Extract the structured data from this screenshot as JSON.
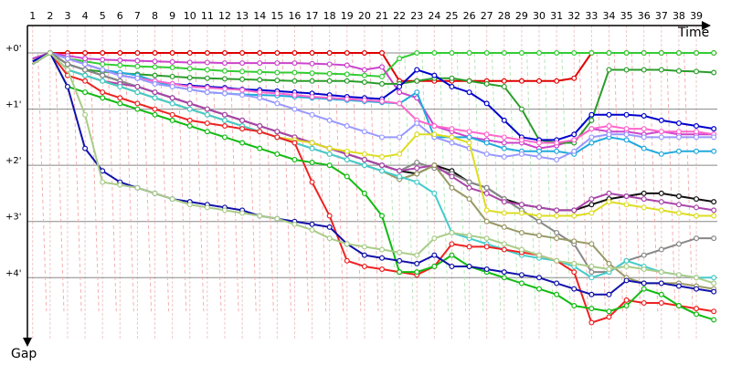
{
  "chart_data": {
    "type": "line",
    "xlabel": "Time",
    "ylabel": "Gap",
    "x_ticks": [
      "1",
      "2",
      "3",
      "4",
      "5",
      "6",
      "7",
      "8",
      "9",
      "10",
      "11",
      "12",
      "13",
      "14",
      "15",
      "16",
      "17",
      "18",
      "19",
      "20",
      "21",
      "22",
      "23",
      "24",
      "25",
      "26",
      "27",
      "28",
      "29",
      "30",
      "31",
      "32",
      "33",
      "34",
      "35",
      "36",
      "37",
      "38",
      "39"
    ],
    "y_ticks": [
      "+0'",
      "+1'",
      "+2'",
      "+3'",
      "+4'"
    ],
    "ylim": [
      0,
      5.1
    ],
    "xlim": [
      0.7,
      40.2
    ],
    "series": [
      {
        "color": "#e00000",
        "values": [
          0.1,
          0,
          0,
          0,
          0,
          0,
          0,
          0,
          0,
          0,
          0,
          0,
          0,
          0,
          0,
          0,
          0,
          0,
          0,
          0,
          0,
          0.5,
          0.5,
          0.5,
          0.5,
          0.5,
          0.5,
          0.5,
          0.5,
          0.5,
          0.5,
          0.45,
          0,
          0,
          0,
          0,
          0,
          0,
          0,
          0
        ]
      },
      {
        "color": "#33cc33",
        "values": [
          0.1,
          0,
          0.1,
          0.15,
          0.2,
          0.22,
          0.24,
          0.25,
          0.26,
          0.28,
          0.3,
          0.32,
          0.33,
          0.34,
          0.35,
          0.35,
          0.36,
          0.37,
          0.38,
          0.4,
          0.42,
          0.1,
          0,
          0,
          0,
          0,
          0,
          0,
          0,
          0,
          0,
          0,
          0,
          0,
          0,
          0,
          0,
          0,
          0,
          0
        ]
      },
      {
        "color": "#cc44cc",
        "values": [
          0.1,
          0,
          0.05,
          0.1,
          0.12,
          0.13,
          0.14,
          0.15,
          0.16,
          0.17,
          0.17,
          0.18,
          0.18,
          0.18,
          0.18,
          0.18,
          0.19,
          0.2,
          0.22,
          0.3,
          0.25,
          0.7,
          0.8,
          1.3,
          1.4,
          1.5,
          1.55,
          1.6,
          1.6,
          1.7,
          1.65,
          1.55,
          1.35,
          1.4,
          1.4,
          1.45,
          1.4,
          1.45,
          1.45,
          1.45
        ]
      },
      {
        "color": "#2a9d2a",
        "values": [
          0.15,
          0,
          0.2,
          0.3,
          0.33,
          0.36,
          0.38,
          0.4,
          0.42,
          0.44,
          0.45,
          0.46,
          0.47,
          0.48,
          0.49,
          0.5,
          0.5,
          0.5,
          0.5,
          0.52,
          0.55,
          0.55,
          0.5,
          0.45,
          0.45,
          0.5,
          0.55,
          0.6,
          1.0,
          1.55,
          1.6,
          1.6,
          1.2,
          0.3,
          0.3,
          0.3,
          0.3,
          0.32,
          0.33,
          0.35
        ]
      },
      {
        "color": "#0000cc",
        "values": [
          0.15,
          0,
          0.1,
          0.2,
          0.3,
          0.4,
          0.45,
          0.5,
          0.55,
          0.58,
          0.6,
          0.62,
          0.65,
          0.66,
          0.68,
          0.7,
          0.72,
          0.75,
          0.78,
          0.8,
          0.82,
          0.6,
          0.3,
          0.4,
          0.6,
          0.7,
          0.9,
          1.2,
          1.5,
          1.55,
          1.55,
          1.45,
          1.1,
          1.1,
          1.1,
          1.12,
          1.2,
          1.25,
          1.3,
          1.35
        ]
      },
      {
        "color": "#22aadd",
        "values": [
          0.2,
          0,
          0.1,
          0.2,
          0.3,
          0.35,
          0.4,
          0.5,
          0.6,
          0.65,
          0.7,
          0.72,
          0.74,
          0.75,
          0.76,
          0.78,
          0.8,
          0.82,
          0.84,
          0.86,
          0.88,
          0.9,
          0.7,
          1.5,
          1.5,
          1.5,
          1.6,
          1.7,
          1.75,
          1.75,
          1.75,
          1.8,
          1.6,
          1.5,
          1.55,
          1.7,
          1.8,
          1.75,
          1.75,
          1.75
        ]
      },
      {
        "color": "#ff66cc",
        "values": [
          0.2,
          0,
          0.1,
          0.2,
          0.3,
          0.4,
          0.45,
          0.5,
          0.55,
          0.6,
          0.62,
          0.64,
          0.66,
          0.7,
          0.72,
          0.75,
          0.78,
          0.8,
          0.82,
          0.84,
          0.86,
          0.9,
          1.2,
          1.3,
          1.35,
          1.4,
          1.45,
          1.5,
          1.55,
          1.6,
          1.6,
          1.55,
          1.35,
          1.3,
          1.35,
          1.35,
          1.4,
          1.4,
          1.4,
          1.45
        ]
      },
      {
        "color": "#9999ff",
        "values": [
          0.2,
          0,
          0.1,
          0.2,
          0.3,
          0.4,
          0.45,
          0.55,
          0.6,
          0.65,
          0.7,
          0.72,
          0.75,
          0.8,
          0.9,
          1.0,
          1.1,
          1.2,
          1.3,
          1.4,
          1.5,
          1.5,
          1.25,
          1.5,
          1.6,
          1.7,
          1.8,
          1.85,
          1.8,
          1.85,
          1.9,
          1.75,
          1.5,
          1.45,
          1.45,
          1.5,
          1.5,
          1.5,
          1.5,
          1.5
        ]
      },
      {
        "color": "#111111",
        "values": [
          0.2,
          0,
          0.2,
          0.3,
          0.4,
          0.5,
          0.6,
          0.7,
          0.8,
          0.9,
          1.0,
          1.1,
          1.2,
          1.3,
          1.4,
          1.5,
          1.6,
          1.7,
          1.8,
          1.9,
          2.0,
          2.1,
          2.15,
          2.0,
          2.1,
          2.3,
          2.4,
          2.6,
          2.7,
          2.75,
          2.8,
          2.8,
          2.7,
          2.6,
          2.55,
          2.5,
          2.5,
          2.55,
          2.6,
          2.65
        ]
      },
      {
        "color": "#888888",
        "values": [
          0.2,
          0,
          0.2,
          0.3,
          0.4,
          0.5,
          0.6,
          0.7,
          0.8,
          0.9,
          1.0,
          1.1,
          1.2,
          1.3,
          1.4,
          1.5,
          1.6,
          1.7,
          1.8,
          1.9,
          2.0,
          2.1,
          1.95,
          2.05,
          2.15,
          2.3,
          2.4,
          2.6,
          2.8,
          3.0,
          3.2,
          3.4,
          3.9,
          3.9,
          3.7,
          3.6,
          3.5,
          3.4,
          3.3,
          3.3
        ]
      },
      {
        "color": "#aa44aa",
        "values": [
          0.2,
          0,
          0.3,
          0.4,
          0.5,
          0.55,
          0.6,
          0.7,
          0.8,
          0.9,
          1.0,
          1.1,
          1.2,
          1.3,
          1.4,
          1.5,
          1.6,
          1.7,
          1.8,
          1.9,
          2.0,
          2.1,
          2.05,
          2.0,
          2.2,
          2.4,
          2.5,
          2.65,
          2.7,
          2.75,
          2.8,
          2.8,
          2.6,
          2.5,
          2.55,
          2.6,
          2.65,
          2.7,
          2.75,
          2.8
        ]
      },
      {
        "color": "#dddd22",
        "values": [
          0.2,
          0,
          0.3,
          0.4,
          0.5,
          0.6,
          0.7,
          0.8,
          0.9,
          1.0,
          1.1,
          1.2,
          1.3,
          1.4,
          1.5,
          1.55,
          1.6,
          1.7,
          1.75,
          1.8,
          1.85,
          1.8,
          1.45,
          1.45,
          1.5,
          1.6,
          2.8,
          2.85,
          2.85,
          2.9,
          2.9,
          2.9,
          2.85,
          2.65,
          2.7,
          2.75,
          2.8,
          2.85,
          2.9,
          2.9
        ]
      },
      {
        "color": "#999966",
        "values": [
          0.2,
          0,
          0.3,
          0.4,
          0.5,
          0.6,
          0.7,
          0.8,
          0.9,
          1.0,
          1.1,
          1.2,
          1.3,
          1.4,
          1.5,
          1.6,
          1.7,
          1.8,
          1.9,
          2.0,
          2.1,
          2.25,
          2.15,
          2.0,
          2.4,
          2.6,
          3.0,
          3.1,
          3.2,
          3.25,
          3.3,
          3.35,
          3.4,
          3.75,
          4.0,
          4.1,
          4.1,
          4.1,
          4.15,
          4.2
        ]
      },
      {
        "color": "#44cccc",
        "values": [
          0.2,
          0,
          0.3,
          0.4,
          0.5,
          0.6,
          0.7,
          0.8,
          0.9,
          1.0,
          1.1,
          1.2,
          1.3,
          1.4,
          1.5,
          1.6,
          1.7,
          1.8,
          1.9,
          2.0,
          2.1,
          2.2,
          2.3,
          2.5,
          3.2,
          3.3,
          3.4,
          3.5,
          3.6,
          3.65,
          3.7,
          3.8,
          4.0,
          3.9,
          3.7,
          3.8,
          3.9,
          3.95,
          4.0,
          4.0
        ]
      },
      {
        "color": "#ee2222",
        "values": [
          0.2,
          0,
          0.4,
          0.5,
          0.7,
          0.8,
          0.9,
          1.0,
          1.1,
          1.2,
          1.25,
          1.3,
          1.35,
          1.4,
          1.5,
          1.6,
          2.3,
          2.9,
          3.7,
          3.8,
          3.85,
          3.9,
          3.95,
          3.8,
          3.4,
          3.45,
          3.45,
          3.5,
          3.55,
          3.6,
          3.7,
          3.9,
          4.8,
          4.7,
          4.4,
          4.45,
          4.45,
          4.5,
          4.55,
          4.6
        ]
      },
      {
        "color": "#11bb11",
        "values": [
          0.2,
          0,
          0.6,
          0.7,
          0.8,
          0.9,
          1.0,
          1.1,
          1.2,
          1.3,
          1.4,
          1.5,
          1.6,
          1.7,
          1.8,
          1.9,
          1.95,
          2.0,
          2.2,
          2.5,
          2.9,
          3.9,
          3.9,
          3.8,
          3.6,
          3.8,
          3.9,
          4.0,
          4.1,
          4.2,
          4.3,
          4.5,
          4.55,
          4.6,
          4.5,
          4.2,
          4.3,
          4.5,
          4.65,
          4.75
        ]
      },
      {
        "color": "#1111aa",
        "values": [
          0.2,
          0,
          0.6,
          1.7,
          2.1,
          2.3,
          2.4,
          2.5,
          2.6,
          2.65,
          2.7,
          2.75,
          2.8,
          2.9,
          2.95,
          3.0,
          3.05,
          3.1,
          3.4,
          3.6,
          3.65,
          3.7,
          3.75,
          3.6,
          3.8,
          3.8,
          3.85,
          3.9,
          3.95,
          4.0,
          4.1,
          4.2,
          4.3,
          4.3,
          4.05,
          4.1,
          4.1,
          4.15,
          4.2,
          4.25
        ]
      },
      {
        "color": "#aacc88",
        "values": [
          0.2,
          0,
          0.3,
          1.1,
          2.3,
          2.35,
          2.4,
          2.5,
          2.6,
          2.7,
          2.75,
          2.8,
          2.85,
          2.9,
          2.95,
          3.05,
          3.15,
          3.3,
          3.4,
          3.45,
          3.5,
          3.55,
          3.6,
          3.3,
          3.2,
          3.25,
          3.3,
          3.4,
          3.5,
          3.6,
          3.7,
          3.75,
          3.8,
          3.85,
          3.8,
          3.85,
          3.9,
          3.95,
          4.0,
          4.1
        ]
      }
    ]
  }
}
